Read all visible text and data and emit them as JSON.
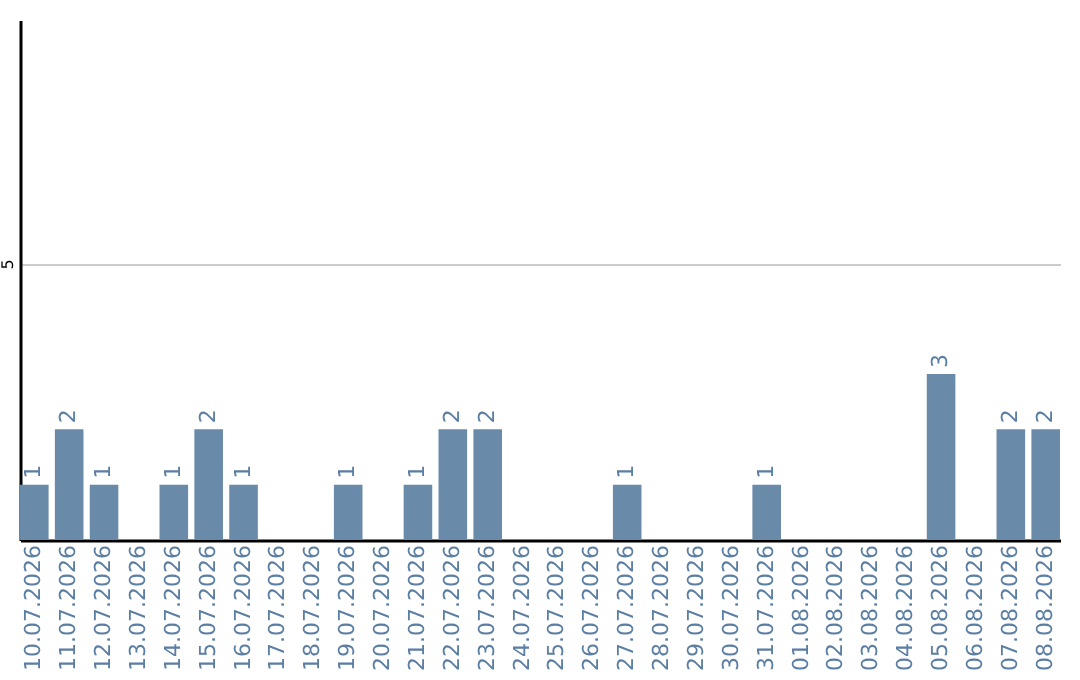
{
  "chart_data": {
    "type": "bar",
    "categories": [
      "10.07.2026",
      "11.07.2026",
      "12.07.2026",
      "13.07.2026",
      "14.07.2026",
      "15.07.2026",
      "16.07.2026",
      "17.07.2026",
      "18.07.2026",
      "19.07.2026",
      "20.07.2026",
      "21.07.2026",
      "22.07.2026",
      "23.07.2026",
      "24.07.2026",
      "25.07.2026",
      "26.07.2026",
      "27.07.2026",
      "28.07.2026",
      "29.07.2026",
      "30.07.2026",
      "31.07.2026",
      "01.08.2026",
      "02.08.2026",
      "03.08.2026",
      "04.08.2026",
      "05.08.2026",
      "06.08.2026",
      "07.08.2026",
      "08.08.2026"
    ],
    "values": [
      1,
      2,
      1,
      0,
      1,
      2,
      1,
      0,
      0,
      1,
      0,
      1,
      2,
      2,
      0,
      0,
      0,
      1,
      0,
      0,
      0,
      1,
      0,
      0,
      0,
      0,
      3,
      0,
      2,
      2
    ],
    "value_labels": [
      "1",
      "2",
      "1",
      null,
      "1",
      "2",
      "1",
      null,
      null,
      "1",
      null,
      "1",
      "2",
      "2",
      null,
      null,
      null,
      "1",
      null,
      null,
      null,
      "1",
      null,
      null,
      null,
      null,
      "3",
      null,
      "2",
      "2"
    ],
    "color": "#6a8aaa",
    "ylim": [
      0,
      9.4
    ],
    "yticks": [
      5
    ],
    "grid": "y"
  }
}
